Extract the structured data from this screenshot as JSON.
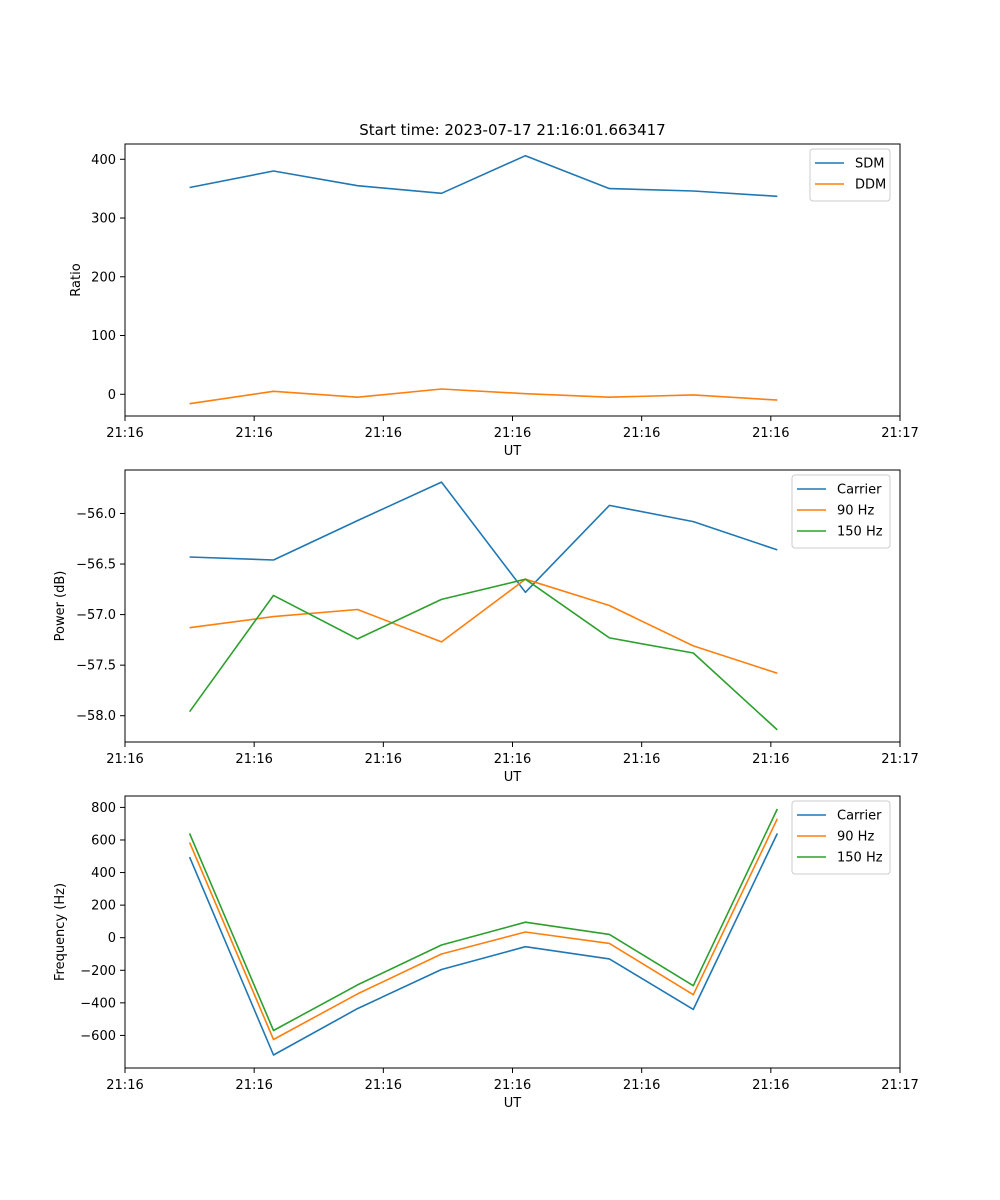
{
  "figure": {
    "title": "Start time: 2023-07-17 21:16:01.663417"
  },
  "chart_data": [
    {
      "type": "line",
      "title": "Start time: 2023-07-17 21:16:01.663417",
      "xlabel": "UT",
      "ylabel": "Ratio",
      "x_tick_labels": [
        "21:16",
        "21:16",
        "21:16",
        "21:16",
        "21:16",
        "21:16",
        "21:17"
      ],
      "xlim": [
        0,
        6
      ],
      "x": [
        0.5,
        1.15,
        1.8,
        2.45,
        3.1,
        3.75,
        4.4,
        5.05
      ],
      "ylim": [
        -37,
        426
      ],
      "y_ticks": [
        0,
        100,
        200,
        300,
        400
      ],
      "legend": "top-right",
      "series": [
        {
          "name": "SDM",
          "color": "#1f77b4",
          "values": [
            352,
            380,
            355,
            342,
            406,
            350,
            346,
            337
          ]
        },
        {
          "name": "DDM",
          "color": "#ff7f0e",
          "values": [
            -16,
            5,
            -5,
            9,
            1,
            -5,
            -1,
            -10
          ]
        }
      ]
    },
    {
      "type": "line",
      "xlabel": "UT",
      "ylabel": "Power (dB)",
      "x_tick_labels": [
        "21:16",
        "21:16",
        "21:16",
        "21:16",
        "21:16",
        "21:16",
        "21:17"
      ],
      "xlim": [
        0,
        6
      ],
      "x": [
        0.5,
        1.15,
        1.8,
        2.45,
        3.1,
        3.75,
        4.4,
        5.05
      ],
      "ylim": [
        -58.26,
        -55.57
      ],
      "y_ticks": [
        -58.0,
        -57.5,
        -57.0,
        -56.5,
        -56.0
      ],
      "y_tick_labels": [
        "−58.0",
        "−57.5",
        "−57.0",
        "−56.5",
        "−56.0"
      ],
      "legend": "top-right",
      "series": [
        {
          "name": "Carrier",
          "color": "#1f77b4",
          "values": [
            -56.43,
            -56.46,
            -56.07,
            -55.69,
            -56.78,
            -55.92,
            -56.08,
            -56.36
          ]
        },
        {
          "name": "90 Hz",
          "color": "#ff7f0e",
          "values": [
            -57.13,
            -57.02,
            -56.95,
            -57.27,
            -56.65,
            -56.91,
            -57.31,
            -57.58
          ]
        },
        {
          "name": "150 Hz",
          "color": "#2ca02c",
          "values": [
            -57.96,
            -56.81,
            -57.24,
            -56.85,
            -56.65,
            -57.23,
            -57.38,
            -58.14
          ]
        }
      ]
    },
    {
      "type": "line",
      "xlabel": "UT",
      "ylabel": "Frequency (Hz)",
      "x_tick_labels": [
        "21:16",
        "21:16",
        "21:16",
        "21:16",
        "21:16",
        "21:16",
        "21:17"
      ],
      "xlim": [
        0,
        6
      ],
      "x": [
        0.5,
        1.15,
        1.8,
        2.45,
        3.1,
        3.75,
        4.4,
        5.05
      ],
      "ylim": [
        -800,
        870
      ],
      "y_ticks": [
        -600,
        -400,
        -200,
        0,
        200,
        400,
        600,
        800
      ],
      "y_tick_labels": [
        "−600",
        "−400",
        "−200",
        "0",
        "200",
        "400",
        "600",
        "800"
      ],
      "legend": "top-right",
      "series": [
        {
          "name": "Carrier",
          "color": "#1f77b4",
          "values": [
            495,
            -720,
            -435,
            -195,
            -55,
            -130,
            -440,
            640
          ]
        },
        {
          "name": "90 Hz",
          "color": "#ff7f0e",
          "values": [
            585,
            -625,
            -345,
            -100,
            35,
            -35,
            -350,
            730
          ]
        },
        {
          "name": "150 Hz",
          "color": "#2ca02c",
          "values": [
            640,
            -570,
            -290,
            -45,
            95,
            20,
            -295,
            790
          ]
        }
      ]
    }
  ]
}
